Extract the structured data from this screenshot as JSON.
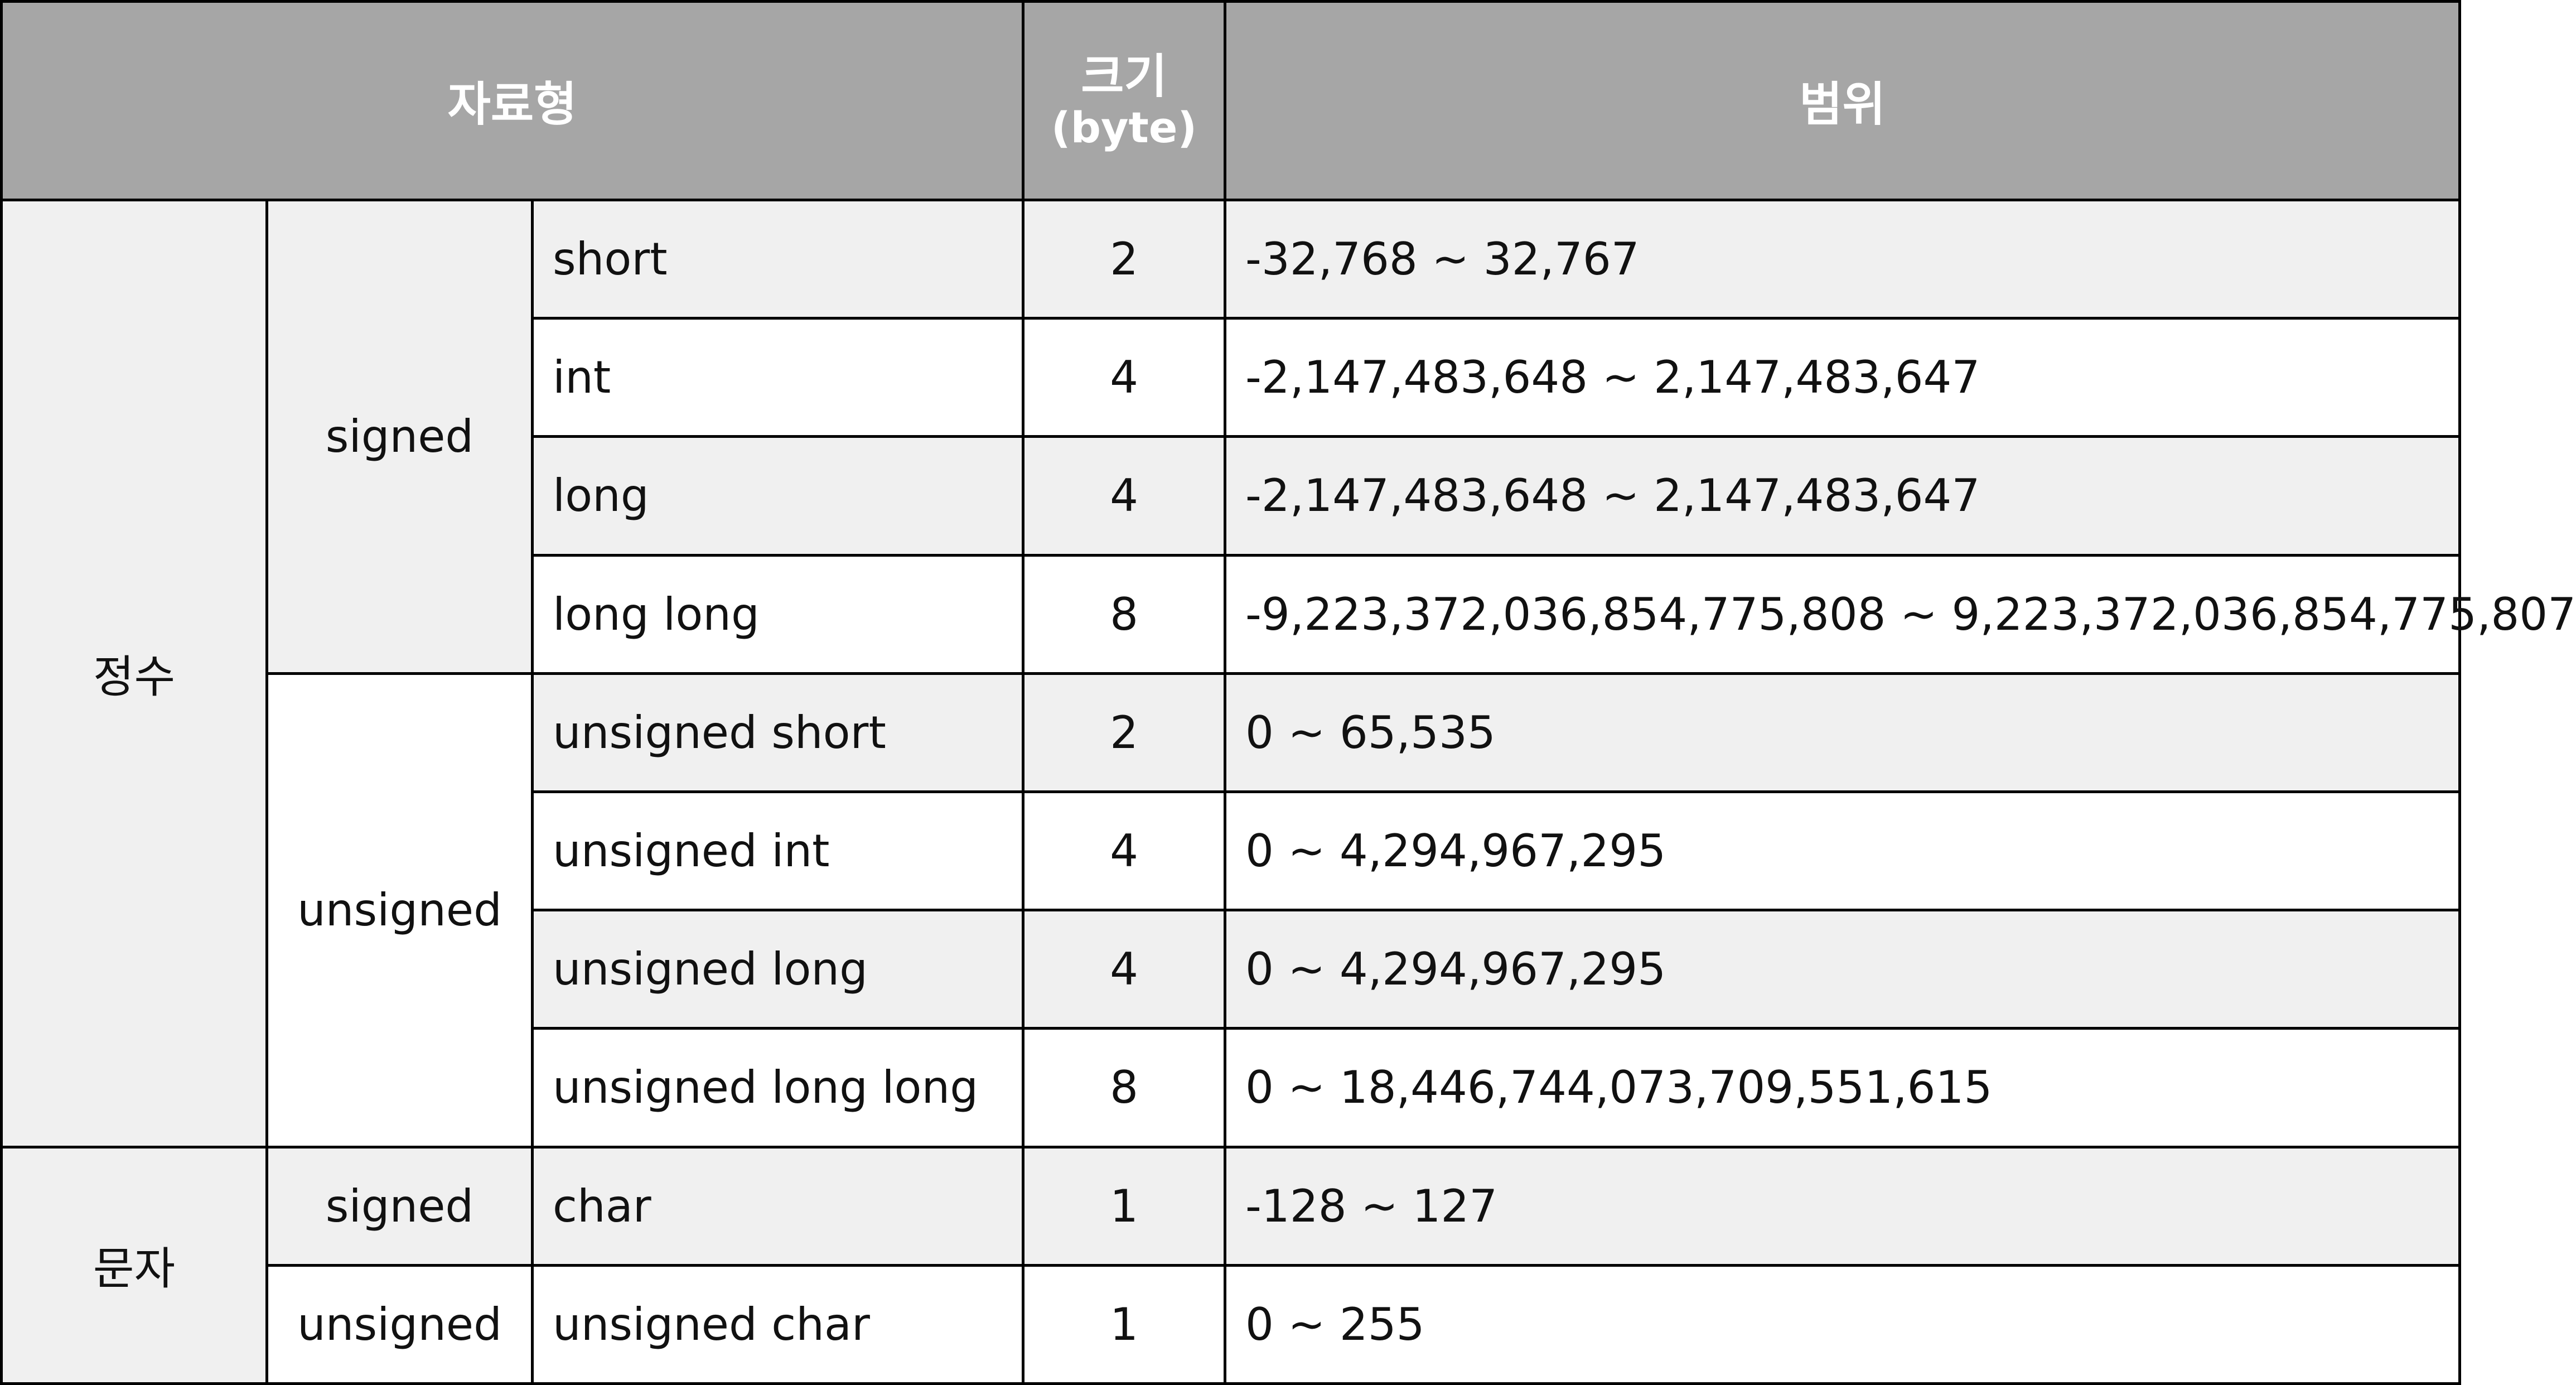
{
  "header": {
    "type_label": "자료형",
    "size_label": "크기",
    "size_unit": "(byte)",
    "range_label": "범위"
  },
  "categories": {
    "integer": "정수",
    "character": "문자"
  },
  "signedness": {
    "integer_signed": "signed",
    "integer_unsigned": "unsigned",
    "char_signed": "signed",
    "char_unsigned": "unsigned"
  },
  "rows": [
    {
      "name": "short",
      "size": "2",
      "range": "-32,768 ~ 32,767"
    },
    {
      "name": "int",
      "size": "4",
      "range": "-2,147,483,648 ~ 2,147,483,647"
    },
    {
      "name": "long",
      "size": "4",
      "range": "-2,147,483,648 ~ 2,147,483,647"
    },
    {
      "name": "long long",
      "size": "8",
      "range": "-9,223,372,036,854,775,808 ~ 9,223,372,036,854,775,807"
    },
    {
      "name": "unsigned short",
      "size": "2",
      "range": "0 ~ 65,535"
    },
    {
      "name": "unsigned int",
      "size": "4",
      "range": "0 ~ 4,294,967,295"
    },
    {
      "name": "unsigned long",
      "size": "4",
      "range": "0 ~ 4,294,967,295"
    },
    {
      "name": "unsigned long long",
      "size": "8",
      "range": "0 ~ 18,446,744,073,709,551,615"
    },
    {
      "name": "char",
      "size": "1",
      "range": "-128 ~ 127"
    },
    {
      "name": "unsigned char",
      "size": "1",
      "range": "0 ~ 255"
    }
  ],
  "colors": {
    "header_bg": "#a6a6a6",
    "header_text": "#ffffff",
    "shaded_row": "#f0f0f0",
    "plain_row": "#ffffff",
    "border": "#000000"
  }
}
